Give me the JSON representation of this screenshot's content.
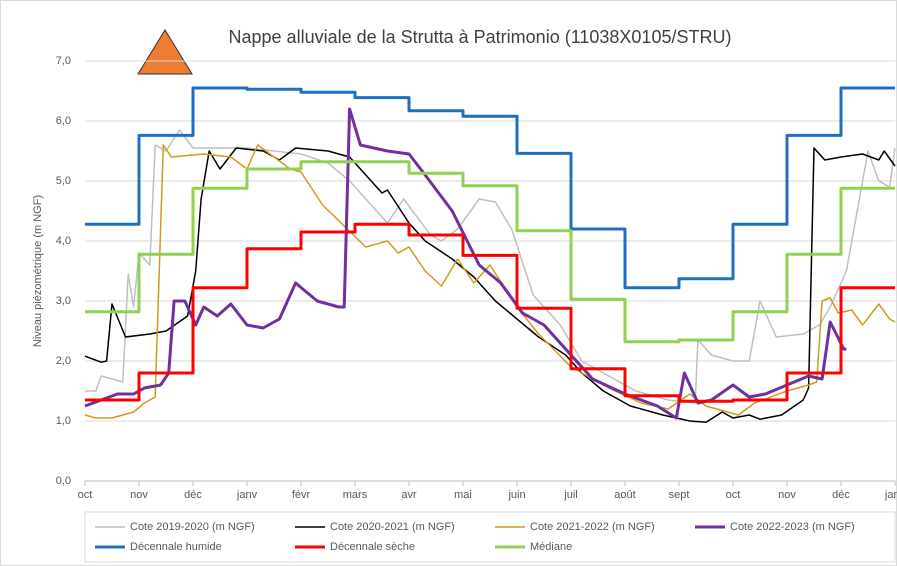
{
  "chart_data": {
    "type": "line",
    "title": "Nappe alluviale de la Strutta à Patrimonio (11038X0105/STRU)",
    "ylabel": "Niveau piézométrique (m NGF)",
    "xlim": [
      0,
      15
    ],
    "ylim": [
      0,
      7
    ],
    "xticks": [
      {
        "value": 0,
        "label": "oct"
      },
      {
        "value": 1,
        "label": "nov"
      },
      {
        "value": 2,
        "label": "déc"
      },
      {
        "value": 3,
        "label": "janv"
      },
      {
        "value": 4,
        "label": "févr"
      },
      {
        "value": 5,
        "label": "mars"
      },
      {
        "value": 6,
        "label": "avr"
      },
      {
        "value": 7,
        "label": "mai"
      },
      {
        "value": 8,
        "label": "juin"
      },
      {
        "value": 9,
        "label": "juil"
      },
      {
        "value": 10,
        "label": "août"
      },
      {
        "value": 11,
        "label": "sept"
      },
      {
        "value": 12,
        "label": "oct"
      },
      {
        "value": 13,
        "label": "nov"
      },
      {
        "value": 14,
        "label": "déc"
      },
      {
        "value": 15,
        "label": "janv"
      }
    ],
    "yticks": [
      {
        "value": 0,
        "label": "0,0"
      },
      {
        "value": 1,
        "label": "1,0"
      },
      {
        "value": 2,
        "label": "2,0"
      },
      {
        "value": 3,
        "label": "3,0"
      },
      {
        "value": 4,
        "label": "4,0"
      },
      {
        "value": 5,
        "label": "5,0"
      },
      {
        "value": 6,
        "label": "6,0"
      },
      {
        "value": 7,
        "label": "7,0"
      }
    ],
    "grid": true,
    "series": [
      {
        "name": "Cote 2019-2020 (m NGF)",
        "color": "#bfbfbf",
        "width": 1.5,
        "x": [
          0,
          0.2,
          0.3,
          0.7,
          0.8,
          0.9,
          1.0,
          1.2,
          1.3,
          1.5,
          1.75,
          2,
          3,
          4,
          4.5,
          4.9,
          5.3,
          5.6,
          5.9,
          6.4,
          6.6,
          6.9,
          7.3,
          7.6,
          7.9,
          8.3,
          8.8,
          9.2,
          9.6,
          10.2,
          10.8,
          11.3,
          11.35,
          11.6,
          12,
          12.3,
          12.5,
          12.8,
          13.3,
          13.6,
          13.8,
          14.1,
          14.3,
          14.5,
          14.7,
          14.9,
          15
        ],
        "values": [
          1.5,
          1.5,
          1.75,
          1.65,
          3.45,
          2.9,
          3.8,
          3.6,
          5.6,
          5.5,
          5.85,
          5.55,
          5.55,
          5.45,
          5.3,
          5.0,
          4.6,
          4.3,
          4.7,
          4.1,
          4.0,
          4.2,
          4.7,
          4.65,
          4.2,
          3.1,
          2.6,
          2.0,
          1.8,
          1.5,
          1.35,
          1.3,
          2.35,
          2.1,
          2.0,
          2.0,
          3.0,
          2.4,
          2.45,
          2.6,
          2.9,
          3.5,
          4.5,
          5.5,
          5.0,
          4.9,
          5.55
        ]
      },
      {
        "name": "Cote 2020-2021 (m NGF)",
        "color": "#000000",
        "width": 1.5,
        "x": [
          0,
          0.3,
          0.4,
          0.5,
          0.75,
          1.2,
          1.5,
          1.9,
          2.05,
          2.15,
          2.3,
          2.5,
          2.8,
          3.3,
          3.6,
          3.9,
          4.5,
          4.9,
          5.3,
          5.5,
          5.6,
          6,
          6.3,
          6.8,
          7.2,
          7.6,
          8.0,
          8.4,
          8.9,
          9.2,
          9.6,
          10.1,
          10.7,
          11.2,
          11.5,
          11.8,
          12.0,
          12.3,
          12.5,
          12.9,
          13.3,
          13.4,
          13.5,
          13.7,
          14,
          14.4,
          14.7,
          14.8,
          15
        ],
        "values": [
          2.08,
          1.98,
          2.0,
          2.95,
          2.4,
          2.45,
          2.5,
          2.75,
          3.5,
          4.7,
          5.5,
          5.2,
          5.55,
          5.5,
          5.35,
          5.55,
          5.5,
          5.4,
          5.0,
          4.8,
          4.85,
          4.3,
          4.0,
          3.7,
          3.4,
          3.0,
          2.7,
          2.4,
          2.1,
          1.8,
          1.5,
          1.25,
          1.1,
          1.0,
          0.98,
          1.15,
          1.05,
          1.1,
          1.03,
          1.1,
          1.35,
          1.55,
          5.55,
          5.35,
          5.4,
          5.45,
          5.35,
          5.5,
          5.25
        ]
      },
      {
        "name": "Cote 2021-2022 (m NGF)",
        "color": "#d09b1c",
        "width": 1.5,
        "x": [
          0,
          0.2,
          0.5,
          0.9,
          1.1,
          1.3,
          1.45,
          1.6,
          2.2,
          2.7,
          3.0,
          3.2,
          3.8,
          4.0,
          4.4,
          4.8,
          5.2,
          5.6,
          5.8,
          6.0,
          6.3,
          6.6,
          6.9,
          7.2,
          7.5,
          8.0,
          8.4,
          9.0,
          9.7,
          10.3,
          10.8,
          11.2,
          11.5,
          12.1,
          12.4,
          13.0,
          13.4,
          13.55,
          13.65,
          13.8,
          13.95,
          14.2,
          14.4,
          14.7,
          14.9,
          15
        ],
        "values": [
          1.1,
          1.05,
          1.05,
          1.15,
          1.3,
          1.4,
          5.6,
          5.4,
          5.45,
          5.4,
          5.2,
          5.6,
          5.2,
          5.15,
          4.6,
          4.25,
          3.9,
          4.0,
          3.8,
          3.9,
          3.5,
          3.25,
          3.7,
          3.3,
          3.6,
          2.9,
          2.45,
          1.9,
          1.55,
          1.3,
          1.2,
          1.45,
          1.25,
          1.1,
          1.3,
          1.5,
          1.6,
          1.65,
          3.0,
          3.05,
          2.8,
          2.85,
          2.6,
          2.95,
          2.7,
          2.65
        ]
      },
      {
        "name": "Cote 2022-2023 (m NGF)",
        "color": "#7030a0",
        "width": 3,
        "x": [
          0,
          0.3,
          0.6,
          0.9,
          1.1,
          1.4,
          1.55,
          1.65,
          1.85,
          2.05,
          2.2,
          2.45,
          2.7,
          3.0,
          3.3,
          3.6,
          3.9,
          4.3,
          4.7,
          4.8,
          4.9,
          5.1,
          5.6,
          6.0,
          6.3,
          6.8,
          7.3,
          7.7,
          8.1,
          8.5,
          9.0,
          9.4,
          10.0,
          10.6,
          10.95,
          11.1,
          11.35,
          11.6,
          12.0,
          12.3,
          12.6,
          13.0,
          13.4,
          13.65,
          13.8,
          14.05,
          14.1
        ],
        "values": [
          1.25,
          1.35,
          1.45,
          1.45,
          1.55,
          1.6,
          1.8,
          3.0,
          3.0,
          2.6,
          2.9,
          2.75,
          2.95,
          2.6,
          2.55,
          2.7,
          3.3,
          3.0,
          2.9,
          2.9,
          6.2,
          5.6,
          5.5,
          5.45,
          5.1,
          4.5,
          3.6,
          3.3,
          2.8,
          2.6,
          2.1,
          1.7,
          1.45,
          1.25,
          1.05,
          1.8,
          1.3,
          1.35,
          1.6,
          1.4,
          1.45,
          1.6,
          1.75,
          1.7,
          2.65,
          2.2,
          2.2
        ]
      },
      {
        "name": "Décennale humide",
        "color": "#1f6fbf",
        "width": 3,
        "x": [
          0,
          1,
          1,
          2,
          2,
          3,
          3,
          4,
          4,
          5,
          5,
          6,
          6,
          7,
          7,
          8,
          8,
          9,
          9,
          10,
          10,
          11,
          11,
          12,
          12,
          13,
          13,
          14,
          14,
          15
        ],
        "values": [
          4.28,
          4.28,
          5.76,
          5.76,
          6.55,
          6.55,
          6.53,
          6.53,
          6.48,
          6.48,
          6.39,
          6.39,
          6.17,
          6.17,
          6.08,
          6.08,
          5.46,
          5.46,
          4.2,
          4.2,
          3.22,
          3.22,
          3.37,
          3.37,
          4.28,
          4.28,
          5.76,
          5.76,
          6.55,
          6.55
        ]
      },
      {
        "name": "Décennale sèche",
        "color": "#ff0000",
        "width": 3,
        "x": [
          0,
          1,
          1,
          2,
          2,
          3,
          3,
          4,
          4,
          5,
          5,
          6,
          6,
          7,
          7,
          8,
          8,
          9,
          9,
          10,
          10,
          11,
          11,
          12,
          12,
          13,
          13,
          14,
          14,
          15
        ],
        "values": [
          1.35,
          1.35,
          1.8,
          1.8,
          3.22,
          3.22,
          3.87,
          3.87,
          4.15,
          4.15,
          4.28,
          4.28,
          4.1,
          4.1,
          3.76,
          3.76,
          2.88,
          2.88,
          1.87,
          1.87,
          1.42,
          1.42,
          1.33,
          1.33,
          1.35,
          1.35,
          1.8,
          1.8,
          3.22,
          3.22
        ]
      },
      {
        "name": "Médiane",
        "color": "#92d050",
        "width": 3,
        "x": [
          0,
          1,
          1,
          2,
          2,
          3,
          3,
          4,
          4,
          5,
          5,
          6,
          6,
          7,
          7,
          8,
          8,
          9,
          9,
          10,
          10,
          11,
          11,
          12,
          12,
          13,
          13,
          14,
          14,
          15
        ],
        "values": [
          2.82,
          2.82,
          3.78,
          3.78,
          4.88,
          4.88,
          5.2,
          5.2,
          5.32,
          5.32,
          5.32,
          5.32,
          5.13,
          5.13,
          4.92,
          4.92,
          4.17,
          4.17,
          3.03,
          3.03,
          2.32,
          2.32,
          2.35,
          2.35,
          2.82,
          2.82,
          3.78,
          3.78,
          4.88,
          4.88
        ]
      }
    ]
  }
}
